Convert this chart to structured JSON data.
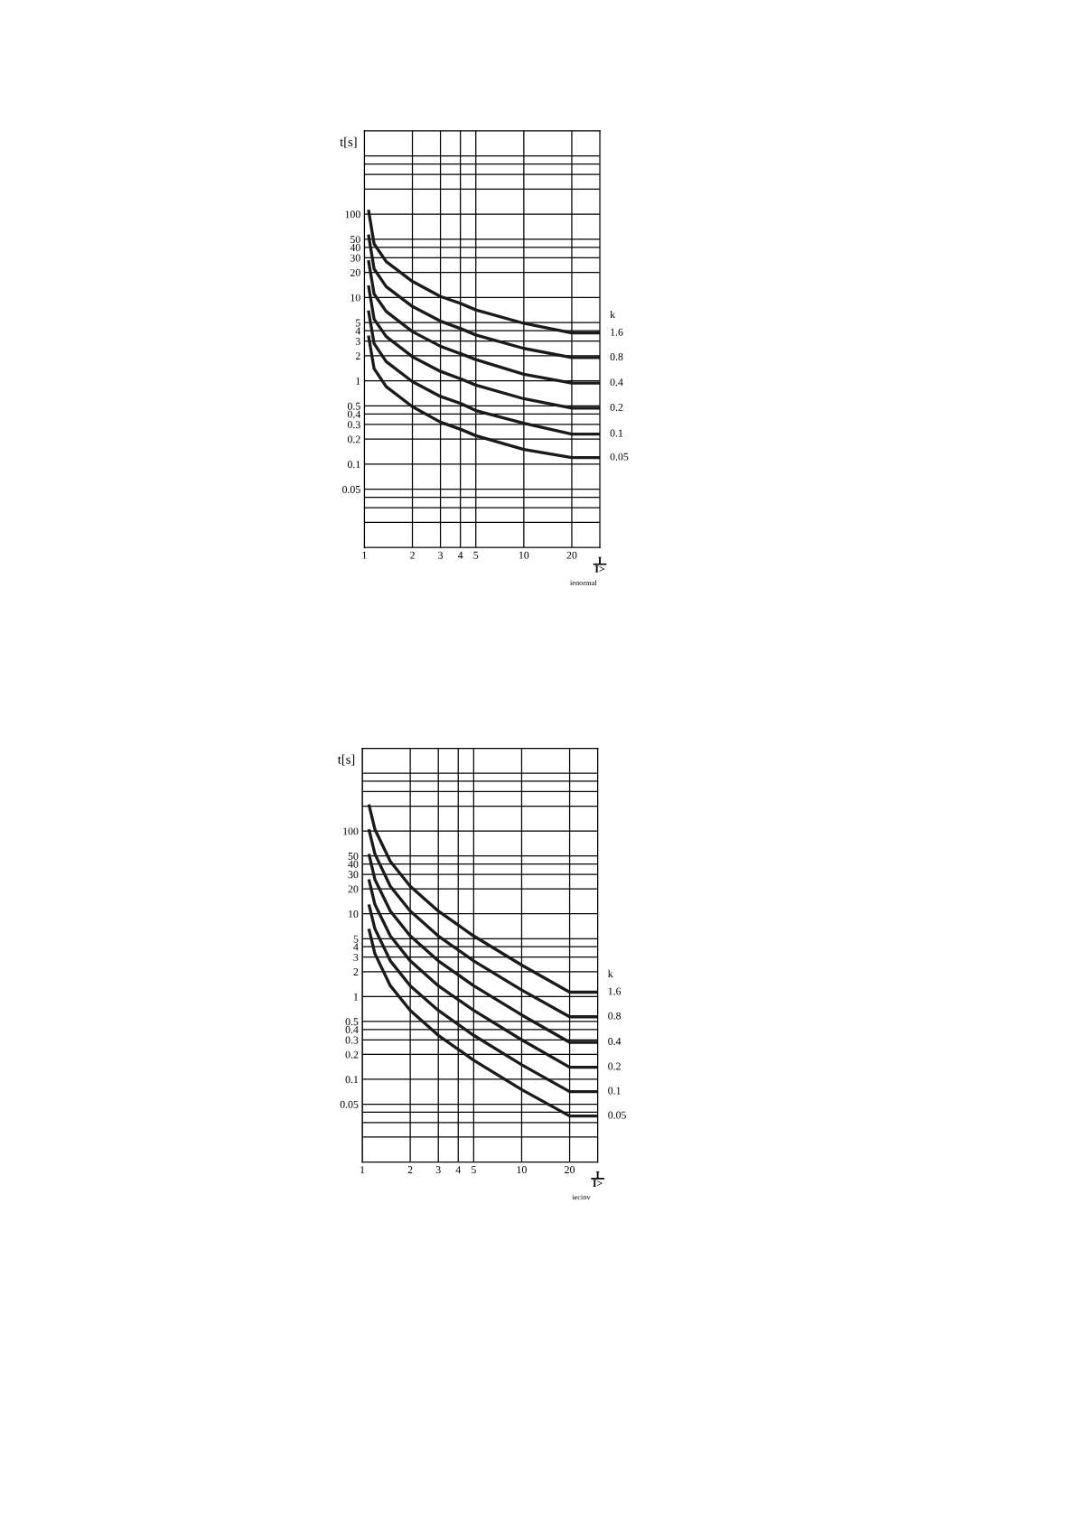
{
  "chart_data": [
    {
      "type": "line",
      "ylabel": "t[s]",
      "xlabel": "I\nI>",
      "legend_title": "k",
      "annotations": [
        "ienormal"
      ],
      "log": "xy",
      "grid": true,
      "line_style": "solid",
      "xlim": [
        1,
        30
      ],
      "ylim": [
        0.01,
        1000
      ],
      "xticks": [
        1,
        2,
        3,
        4,
        5,
        10,
        20
      ],
      "yticks": [
        {
          "value": 0.02,
          "label": null
        },
        {
          "value": 0.03,
          "label": null
        },
        {
          "value": 0.04,
          "label": null
        },
        0.05,
        0.1,
        0.2,
        0.3,
        0.4,
        0.5,
        1,
        2,
        3,
        4,
        5,
        10,
        20,
        30,
        40,
        50,
        100,
        {
          "value": 200,
          "label": null
        },
        {
          "value": 300,
          "label": null
        },
        {
          "value": 400,
          "label": null
        },
        {
          "value": 500,
          "label": null
        }
      ],
      "x": [
        1.06,
        1.15,
        1.37,
        2,
        3,
        4.06,
        5,
        10,
        20,
        30
      ],
      "series": [
        {
          "name": "1.6",
          "color": "#1a1a1a",
          "values": [
            113,
            44,
            27,
            15.6,
            10.3,
            8.4,
            7.1,
            4.9,
            3.75,
            3.75
          ]
        },
        {
          "name": "0.8",
          "color": "#1a1a1a",
          "values": [
            57,
            22,
            13.5,
            7.8,
            5.2,
            4.2,
            3.55,
            2.45,
            1.9,
            1.9
          ]
        },
        {
          "name": "0.4",
          "color": "#1a1a1a",
          "values": [
            28,
            11,
            6.8,
            3.9,
            2.6,
            2.1,
            1.8,
            1.2,
            0.94,
            0.94
          ]
        },
        {
          "name": "0.2",
          "color": "#1a1a1a",
          "values": [
            14,
            5.5,
            3.4,
            1.95,
            1.3,
            1.05,
            0.89,
            0.61,
            0.47,
            0.47
          ]
        },
        {
          "name": "0.1",
          "color": "#1a1a1a",
          "values": [
            7,
            2.8,
            1.7,
            0.98,
            0.65,
            0.53,
            0.44,
            0.31,
            0.23,
            0.23
          ]
        },
        {
          "name": "0.05",
          "color": "#1a1a1a",
          "values": [
            3.5,
            1.4,
            0.85,
            0.49,
            0.32,
            0.26,
            0.22,
            0.15,
            0.12,
            0.12
          ]
        }
      ]
    },
    {
      "type": "line",
      "ylabel": "t[s]",
      "xlabel": "I\nI>",
      "legend_title": "k",
      "annotations": [
        "iecinv"
      ],
      "log": "xy",
      "grid": true,
      "line_style": "solid",
      "xlim": [
        1,
        30
      ],
      "ylim": [
        0.01,
        1000
      ],
      "xticks": [
        1,
        2,
        3,
        4,
        5,
        10,
        20
      ],
      "yticks": [
        {
          "value": 0.02,
          "label": null
        },
        {
          "value": 0.03,
          "label": null
        },
        {
          "value": 0.04,
          "label": null
        },
        0.05,
        0.1,
        0.2,
        0.3,
        0.4,
        0.5,
        1,
        2,
        3,
        4,
        5,
        10,
        20,
        30,
        40,
        50,
        100,
        {
          "value": 200,
          "label": null
        },
        {
          "value": 300,
          "label": null
        },
        {
          "value": 400,
          "label": null
        },
        {
          "value": 500,
          "label": null
        }
      ],
      "x": [
        1.1,
        1.2,
        1.5,
        2,
        3,
        5,
        10,
        20,
        30
      ],
      "series": [
        {
          "name": "1.6",
          "color": "#1a1a1a",
          "values": [
            210,
            105,
            43,
            21.5,
            10.8,
            5.4,
            2.4,
            1.13,
            1.13
          ]
        },
        {
          "name": "0.8",
          "color": "#1a1a1a",
          "values": [
            105,
            53,
            21.5,
            10.8,
            5.4,
            2.7,
            1.2,
            0.57,
            0.57
          ]
        },
        {
          "name": "0.4",
          "color": "#1a1a1a",
          "values": [
            53,
            26,
            10.8,
            5.4,
            2.7,
            1.35,
            0.6,
            0.28,
            0.28
          ]
        },
        {
          "name": "0.2",
          "color": "#1a1a1a",
          "values": [
            26,
            13,
            5.4,
            2.7,
            1.35,
            0.68,
            0.3,
            0.14,
            0.14
          ]
        },
        {
          "name": "0.1",
          "color": "#1a1a1a",
          "values": [
            13,
            6.6,
            2.7,
            1.35,
            0.68,
            0.34,
            0.15,
            0.071,
            0.071
          ]
        },
        {
          "name": "0.05",
          "color": "#1a1a1a",
          "values": [
            6.6,
            3.3,
            1.35,
            0.68,
            0.34,
            0.17,
            0.075,
            0.036,
            0.036
          ]
        }
      ]
    }
  ]
}
